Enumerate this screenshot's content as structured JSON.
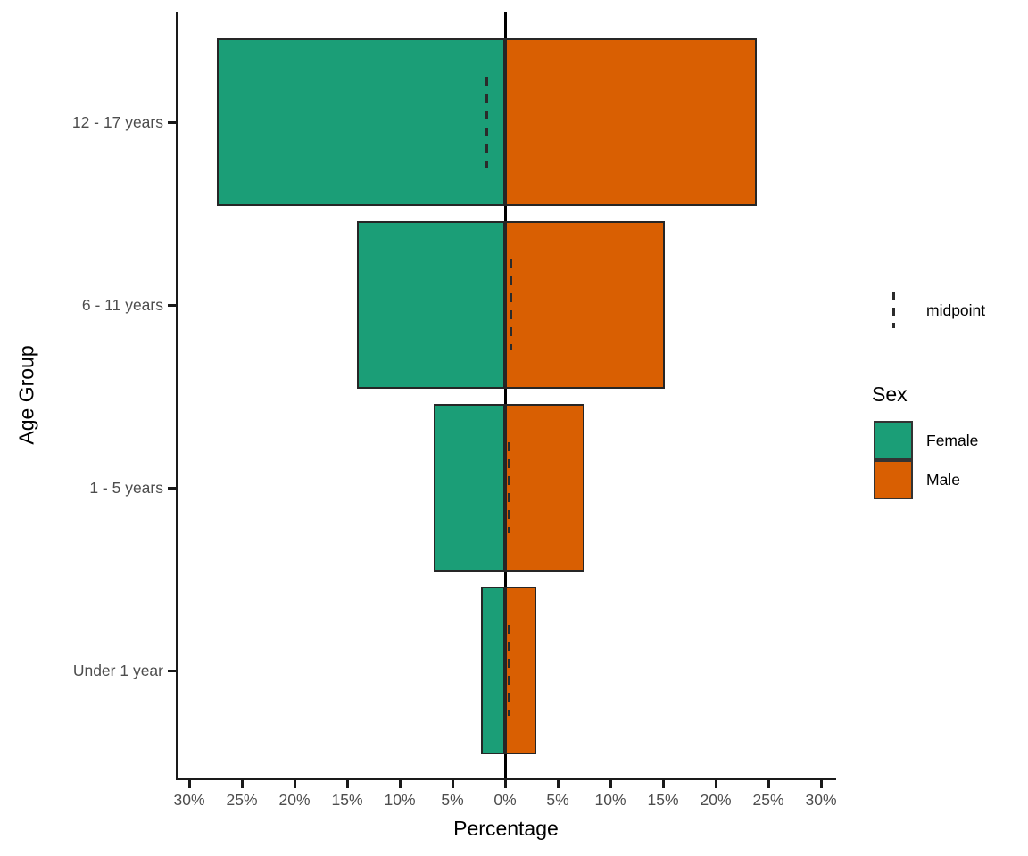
{
  "chart_data": {
    "type": "bar",
    "variant": "diverging-population-pyramid",
    "title": "",
    "xlabel": "Percentage",
    "ylabel": "Age Group",
    "categories": [
      "12 - 17 years",
      "6 - 11 years",
      "1 - 5 years",
      "Under 1 year"
    ],
    "series": [
      {
        "name": "Female",
        "side": "left",
        "color": "#1B9E77",
        "values": [
          27.4,
          14.1,
          6.8,
          2.3
        ]
      },
      {
        "name": "Male",
        "side": "right",
        "color": "#D95F02",
        "values": [
          23.9,
          15.2,
          7.5,
          3.0
        ]
      }
    ],
    "midpoints": {
      "name": "midpoint",
      "values": [
        -1.75,
        0.55,
        0.35,
        0.35
      ]
    },
    "x_ticks": [
      -30,
      -25,
      -20,
      -15,
      -10,
      -5,
      0,
      5,
      10,
      15,
      20,
      25,
      30
    ],
    "x_tick_labels": [
      "30%",
      "25%",
      "20%",
      "15%",
      "10%",
      "5%",
      "0%",
      "5%",
      "10%",
      "15%",
      "20%",
      "25%",
      "30%"
    ],
    "xlim": [
      -31,
      31
    ],
    "grid": false,
    "legend_position": "right"
  },
  "axes": {
    "x_title": "Percentage",
    "y_title": "Age Group"
  },
  "legend": {
    "midpoint_label": "midpoint",
    "sex_title": "Sex",
    "entries": [
      {
        "label": "Female",
        "color": "#1B9E77"
      },
      {
        "label": "Male",
        "color": "#D95F02"
      }
    ]
  },
  "colors": {
    "female": "#1B9E77",
    "male": "#D95F02",
    "bar_border": "#262626",
    "axis_line": "#1a1a1a",
    "zero_line": "#000000",
    "tick_text": "#4d4d4d",
    "title_text": "#000000",
    "midpoint_line": "#2b2b2b",
    "background": "#FFFFFF"
  }
}
